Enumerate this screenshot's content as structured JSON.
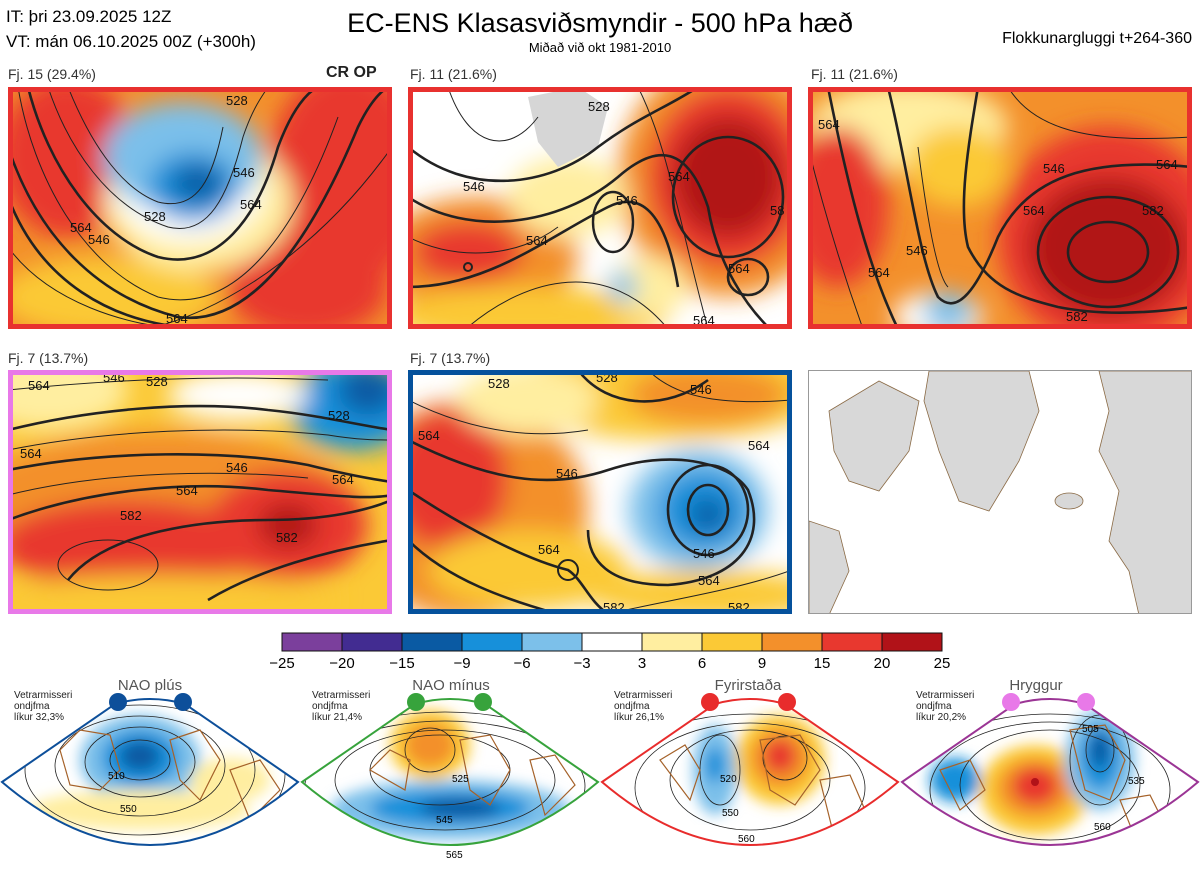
{
  "header": {
    "it_line": "IT: þri 23.09.2025 12Z",
    "vt_line": "VT: mán 06.10.2025 00Z  (+300h)",
    "title": "EC-ENS Klasasviðsmyndir - 500 hPa hæð",
    "subtitle": "Miðað við okt 1981-2010",
    "window": "Flokkunargluggi t+264-360"
  },
  "colors": {
    "red_frame": "#e8312f",
    "violet_frame": "#e879e8",
    "blue_frame": "#05519c",
    "nao_plus": "#0d4f9a",
    "nao_minus": "#37a33c",
    "blocking": "#e82c2c",
    "ridge": "#9b3595"
  },
  "panels": [
    {
      "label": "Fj. 15 (29.4%)",
      "marker": "CR OP",
      "contours": [
        "528",
        "546",
        "564",
        "528",
        "546",
        "564",
        "564"
      ]
    },
    {
      "label": "Fj. 11 (21.6%)",
      "contours": [
        "528",
        "546",
        "564",
        "546",
        "564",
        "564",
        "58",
        "564"
      ]
    },
    {
      "label": "Fj. 11 (21.6%)",
      "contours": [
        "564",
        "546",
        "564",
        "582",
        "546",
        "564",
        "564",
        "582"
      ]
    },
    {
      "label": "Fj. 7 (13.7%)",
      "contours": [
        "564",
        "546",
        "528",
        "528",
        "564",
        "546",
        "564",
        "564",
        "582",
        "582"
      ]
    },
    {
      "label": "Fj. 7 (13.7%)",
      "contours": [
        "546",
        "528",
        "564",
        "546",
        "528",
        "564",
        "546",
        "564",
        "564",
        "582",
        "582"
      ]
    }
  ],
  "chart_data": {
    "type": "heatmap",
    "title": "EC-ENS Klasasviðsmyndir - 500 hPa hæð",
    "colorbar": {
      "ticks": [
        "−25",
        "−20",
        "−15",
        "−9",
        "−6",
        "−3",
        "3",
        "6",
        "9",
        "15",
        "20",
        "25"
      ],
      "colors": [
        "#7b3f9c",
        "#422c91",
        "#0a5aa3",
        "#1790da",
        "#7cc0ea",
        "#ffffff",
        "#ffeea0",
        "#fbc936",
        "#f3902b",
        "#e8382f",
        "#b11218"
      ]
    },
    "clusters": [
      {
        "name": "Fj. 15",
        "percent": 29.4
      },
      {
        "name": "Fj. 11",
        "percent": 21.6
      },
      {
        "name": "Fj. 11",
        "percent": 21.6
      },
      {
        "name": "Fj. 7",
        "percent": 13.7
      },
      {
        "name": "Fj. 7",
        "percent": 13.7
      }
    ],
    "regimes": [
      {
        "name": "NAO plús",
        "info": [
          "Vetrarmisseri",
          "ondjfma",
          "líkur 32,3%"
        ],
        "probability": 32.3,
        "contours": [
          "510",
          "550"
        ]
      },
      {
        "name": "NAO mínus",
        "info": [
          "Vetrarmisseri",
          "ondjfma",
          "líkur 21,4%"
        ],
        "probability": 21.4,
        "contours": [
          "525",
          "545",
          "565"
        ]
      },
      {
        "name": "Fyrirstaða",
        "info": [
          "Vetrarmisseri",
          "ondjfma",
          "líkur 26,1%"
        ],
        "probability": 26.1,
        "contours": [
          "520",
          "550",
          "560"
        ]
      },
      {
        "name": "Hryggur",
        "info": [
          "Vetrarmisseri",
          "ondjfma",
          "líkur 20,2%"
        ],
        "probability": 20.2,
        "contours": [
          "505",
          "535",
          "560"
        ]
      }
    ]
  }
}
